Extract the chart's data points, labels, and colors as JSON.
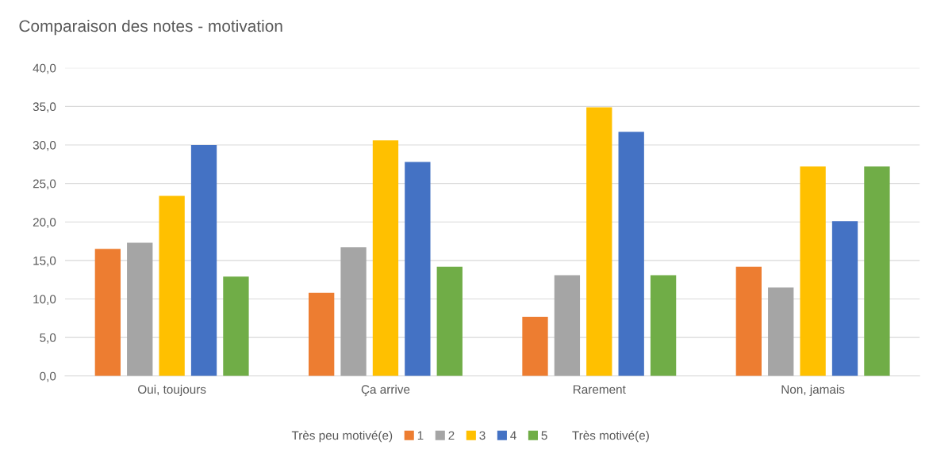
{
  "chart_data": {
    "type": "bar",
    "title": "Comparaison des notes - motivation",
    "legend_title": "Très peu motivé(e)",
    "annotations": [
      "Très motivé(e)"
    ],
    "categories": [
      "Oui, toujours",
      "Ça arrive",
      "Rarement",
      "Non, jamais"
    ],
    "series": [
      {
        "name": "1",
        "color": "#ed7d31",
        "values": [
          16.5,
          10.8,
          7.7,
          14.2
        ]
      },
      {
        "name": "2",
        "color": "#a5a5a5",
        "values": [
          17.3,
          16.7,
          13.1,
          11.5
        ]
      },
      {
        "name": "3",
        "color": "#ffc000",
        "values": [
          23.4,
          30.6,
          34.9,
          27.2
        ]
      },
      {
        "name": "4",
        "color": "#4472c4",
        "values": [
          30.0,
          27.8,
          31.7,
          20.1
        ]
      },
      {
        "name": "5",
        "color": "#70ad47",
        "values": [
          12.9,
          14.2,
          13.1,
          27.2
        ]
      }
    ],
    "ylim": [
      0,
      40
    ],
    "yticks": [
      {
        "value": 0,
        "label": "0,0"
      },
      {
        "value": 5,
        "label": "5,0"
      },
      {
        "value": 10,
        "label": "10,0"
      },
      {
        "value": 15,
        "label": "15,0"
      },
      {
        "value": 20,
        "label": "20,0"
      },
      {
        "value": 25,
        "label": "25,0"
      },
      {
        "value": 30,
        "label": "30,0"
      },
      {
        "value": 35,
        "label": "35,0"
      },
      {
        "value": 40,
        "label": "40,0"
      }
    ],
    "grid": "y",
    "legend": "bottom"
  }
}
